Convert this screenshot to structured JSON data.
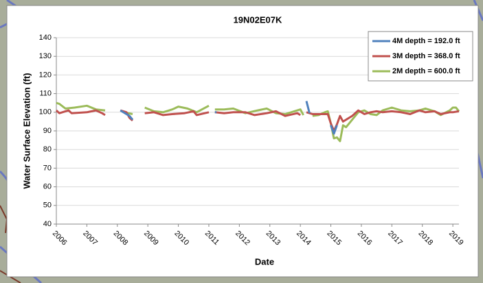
{
  "chart_data": {
    "type": "line",
    "title": "19N02E07K",
    "x_label": "Date",
    "y_label": "Water Surface Elevation (ft)",
    "xlim": [
      2006,
      2019.2
    ],
    "xticks": [
      2006,
      2007,
      2008,
      2009,
      2010,
      2011,
      2012,
      2013,
      2014,
      2015,
      2016,
      2017,
      2018,
      2019
    ],
    "ylim": [
      40,
      140
    ],
    "yticks": [
      40,
      50,
      60,
      70,
      80,
      90,
      100,
      110,
      120,
      130,
      140
    ],
    "grid": true,
    "legend": "top-right",
    "series": [
      {
        "name": "4M depth = 192.0 ft",
        "color": "#4f81bd",
        "x": [
          2008.1,
          2008.4,
          2008.5,
          null,
          2011.2,
          2011.25,
          null,
          2014.2,
          2014.3,
          null,
          2015.0,
          2015.1,
          2015.2
        ],
        "values": [
          101,
          98,
          96,
          null,
          100,
          100,
          null,
          106,
          99.5,
          null,
          93,
          88.5,
          93
        ]
      },
      {
        "name": "3M depth = 368.0 ft",
        "color": "#c0504d",
        "x": [
          2006.0,
          2006.1,
          2006.3,
          2006.4,
          2006.5,
          2007.0,
          2007.3,
          2007.5,
          2007.6,
          null,
          2008.1,
          2008.3,
          2008.4,
          2008.5,
          null,
          2008.9,
          2009.2,
          2009.5,
          2009.8,
          2010.2,
          2010.5,
          2010.6,
          2011.0,
          null,
          2011.2,
          2011.5,
          2011.8,
          2012.2,
          2012.5,
          2012.9,
          2013.2,
          2013.5,
          2013.9,
          2014.0,
          null,
          2014.2,
          2014.4,
          2014.6,
          2014.9,
          2015.0,
          2015.1,
          2015.2,
          2015.3,
          2015.4,
          2015.5,
          2015.7,
          2015.9,
          2016.1,
          2016.3,
          2016.5,
          2016.7,
          2017.0,
          2017.3,
          2017.6,
          2017.9,
          2018.1,
          2018.4,
          2018.6,
          2018.9,
          2019.0,
          2019.2
        ],
        "values": [
          101,
          99.5,
          100.5,
          101,
          99.5,
          100,
          101,
          99.5,
          98.5,
          null,
          101,
          100,
          97,
          95.5,
          null,
          99.5,
          100,
          98.5,
          99,
          99.5,
          100.5,
          98.5,
          100,
          null,
          100,
          99.5,
          100,
          100,
          98.5,
          99.5,
          100.5,
          98,
          99.5,
          98.5,
          null,
          100,
          99,
          99,
          99,
          94,
          90,
          93.5,
          98,
          95,
          96,
          98,
          101,
          99,
          100,
          100.5,
          100,
          100.5,
          100,
          99,
          101,
          100,
          100.5,
          99,
          100,
          100,
          100.5
        ]
      },
      {
        "name": "2M depth = 600.0 ft",
        "color": "#9bbb59",
        "x": [
          2006.0,
          2006.1,
          2006.3,
          2006.6,
          2007.0,
          2007.3,
          2007.6,
          null,
          2008.2,
          2008.5,
          null,
          2008.9,
          2009.2,
          2009.5,
          2009.8,
          2010.0,
          2010.3,
          2010.6,
          2011.0,
          null,
          2011.2,
          2011.5,
          2011.8,
          2012.2,
          2012.6,
          2012.9,
          2013.2,
          2013.5,
          2013.9,
          2014.0,
          2014.1,
          null,
          2014.4,
          2014.6,
          2014.8,
          2014.9,
          2015.0,
          2015.1,
          2015.2,
          2015.3,
          2015.4,
          2015.5,
          2015.7,
          2015.9,
          2016.1,
          2016.3,
          2016.5,
          2016.7,
          2017.0,
          2017.3,
          2017.6,
          2017.9,
          2018.1,
          2018.4,
          2018.6,
          2018.9,
          2019.0,
          2019.1,
          2019.2
        ],
        "values": [
          105,
          104.5,
          102,
          102.5,
          103.5,
          101.5,
          101,
          null,
          100,
          99,
          null,
          102.5,
          100.5,
          100,
          101.5,
          103,
          102,
          100,
          103.5,
          null,
          101.5,
          101.5,
          102,
          99.5,
          101,
          102,
          99.5,
          99,
          101,
          101.5,
          98.5,
          null,
          98,
          98.5,
          100,
          100.5,
          94,
          86,
          86.5,
          84.5,
          93,
          92,
          96,
          100,
          101,
          99,
          98.5,
          101,
          102.5,
          101,
          100.5,
          101,
          102,
          100.5,
          98.5,
          101,
          102.5,
          102.5,
          100.5
        ]
      }
    ]
  }
}
